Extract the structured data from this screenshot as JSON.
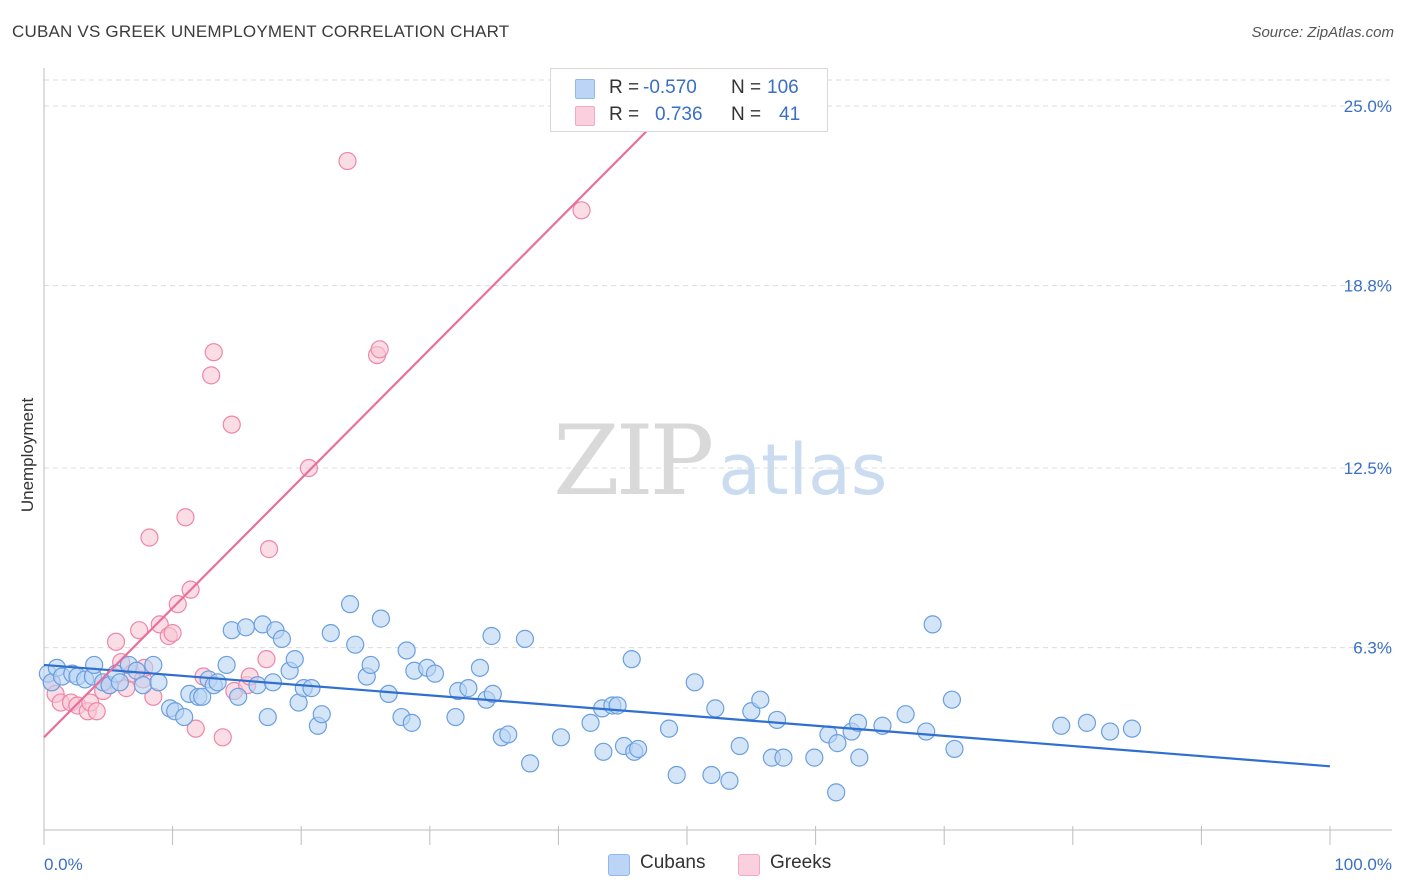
{
  "header": {
    "title": "CUBAN VS GREEK UNEMPLOYMENT CORRELATION CHART",
    "source": "Source: ZipAtlas.com"
  },
  "watermark": {
    "zip": "ZIP",
    "atlas": "atlas"
  },
  "legend": {
    "rows": [
      {
        "r_label": "R =",
        "r_value": "-0.570",
        "n_label": "N =",
        "n_value": "106",
        "color": "#8fb8ee"
      },
      {
        "r_label": "R =",
        "r_value": "0.736",
        "n_label": "N =",
        "n_value": "41",
        "color": "#f4a9c0"
      }
    ]
  },
  "bottom_legend": [
    {
      "label": "Cubans",
      "color": "#8fb8ee"
    },
    {
      "label": "Greeks",
      "color": "#f4a9c0"
    }
  ],
  "chart_data": {
    "type": "scatter",
    "title": "CUBAN VS GREEK UNEMPLOYMENT CORRELATION CHART",
    "ylabel": "Unemployment",
    "xlabel": "",
    "xlim": [
      0,
      100
    ],
    "ylim": [
      0,
      25.9
    ],
    "x_tick_labels": [
      {
        "value": 0,
        "label": "0.0%"
      },
      {
        "value": 100,
        "label": "100.0%"
      }
    ],
    "y_ticks": [
      {
        "value": 6.3,
        "label": "6.3%"
      },
      {
        "value": 12.5,
        "label": "12.5%"
      },
      {
        "value": 18.8,
        "label": "18.8%"
      },
      {
        "value": 25.0,
        "label": "25.0%"
      }
    ],
    "grid": "horizontal dashed",
    "legend_position": "top-center",
    "series": [
      {
        "name": "Cubans",
        "color": "#6a9fe0",
        "fill": "#b9d3f4",
        "trend": {
          "x": [
            0,
            100
          ],
          "y": [
            5.7,
            2.2
          ]
        },
        "points": [
          [
            0.3,
            5.4
          ],
          [
            0.6,
            5.1
          ],
          [
            1.0,
            5.6
          ],
          [
            1.4,
            5.3
          ],
          [
            2.2,
            5.4
          ],
          [
            2.6,
            5.3
          ],
          [
            3.2,
            5.2
          ],
          [
            3.8,
            5.3
          ],
          [
            3.9,
            5.7
          ],
          [
            4.6,
            5.1
          ],
          [
            5.1,
            5.0
          ],
          [
            5.6,
            5.4
          ],
          [
            5.9,
            5.1
          ],
          [
            6.6,
            5.7
          ],
          [
            7.2,
            5.5
          ],
          [
            7.7,
            5.0
          ],
          [
            8.5,
            5.7
          ],
          [
            8.9,
            5.1
          ],
          [
            9.8,
            4.2
          ],
          [
            10.2,
            4.1
          ],
          [
            10.9,
            3.9
          ],
          [
            11.3,
            4.7
          ],
          [
            12.0,
            4.6
          ],
          [
            12.3,
            4.6
          ],
          [
            12.8,
            5.2
          ],
          [
            13.2,
            5.0
          ],
          [
            13.5,
            5.1
          ],
          [
            14.2,
            5.7
          ],
          [
            14.6,
            6.9
          ],
          [
            15.1,
            4.6
          ],
          [
            15.7,
            7.0
          ],
          [
            16.6,
            5.0
          ],
          [
            17.0,
            7.1
          ],
          [
            17.4,
            3.9
          ],
          [
            17.8,
            5.1
          ],
          [
            18.0,
            6.9
          ],
          [
            18.5,
            6.6
          ],
          [
            19.1,
            5.5
          ],
          [
            19.5,
            5.9
          ],
          [
            19.8,
            4.4
          ],
          [
            20.2,
            4.9
          ],
          [
            20.8,
            4.9
          ],
          [
            21.3,
            3.6
          ],
          [
            21.6,
            4.0
          ],
          [
            22.3,
            6.8
          ],
          [
            23.8,
            7.8
          ],
          [
            24.2,
            6.4
          ],
          [
            25.1,
            5.3
          ],
          [
            25.4,
            5.7
          ],
          [
            26.2,
            7.3
          ],
          [
            26.8,
            4.7
          ],
          [
            27.8,
            3.9
          ],
          [
            28.2,
            6.2
          ],
          [
            28.6,
            3.7
          ],
          [
            28.8,
            5.5
          ],
          [
            29.8,
            5.6
          ],
          [
            30.4,
            5.4
          ],
          [
            32.0,
            3.9
          ],
          [
            32.2,
            4.8
          ],
          [
            33.0,
            4.9
          ],
          [
            33.9,
            5.6
          ],
          [
            34.4,
            4.5
          ],
          [
            34.8,
            6.7
          ],
          [
            34.9,
            4.7
          ],
          [
            35.6,
            3.2
          ],
          [
            36.1,
            3.3
          ],
          [
            37.4,
            6.6
          ],
          [
            37.8,
            2.3
          ],
          [
            40.2,
            3.2
          ],
          [
            42.5,
            3.7
          ],
          [
            43.4,
            4.2
          ],
          [
            43.5,
            2.7
          ],
          [
            44.2,
            4.3
          ],
          [
            44.6,
            4.3
          ],
          [
            45.1,
            2.9
          ],
          [
            45.7,
            5.9
          ],
          [
            45.9,
            2.7
          ],
          [
            46.2,
            2.8
          ],
          [
            48.6,
            3.5
          ],
          [
            49.2,
            1.9
          ],
          [
            50.6,
            5.1
          ],
          [
            51.9,
            1.9
          ],
          [
            52.2,
            4.2
          ],
          [
            53.3,
            1.7
          ],
          [
            54.1,
            2.9
          ],
          [
            55.0,
            4.1
          ],
          [
            55.7,
            4.5
          ],
          [
            56.6,
            2.5
          ],
          [
            57.0,
            3.8
          ],
          [
            57.5,
            2.5
          ],
          [
            59.9,
            2.5
          ],
          [
            61.0,
            3.3
          ],
          [
            61.6,
            1.3
          ],
          [
            61.7,
            3.0
          ],
          [
            62.8,
            3.4
          ],
          [
            63.3,
            3.7
          ],
          [
            63.4,
            2.5
          ],
          [
            65.2,
            3.6
          ],
          [
            67.0,
            4.0
          ],
          [
            68.6,
            3.4
          ],
          [
            69.1,
            7.1
          ],
          [
            70.6,
            4.5
          ],
          [
            70.8,
            2.8
          ],
          [
            79.1,
            3.6
          ],
          [
            81.1,
            3.7
          ],
          [
            82.9,
            3.4
          ],
          [
            84.6,
            3.5
          ]
        ]
      },
      {
        "name": "Greeks",
        "color": "#ee86a8",
        "fill": "#f8c6d6",
        "trend": {
          "x": [
            0,
            48.8
          ],
          "y": [
            3.2,
            25.0
          ]
        },
        "points": [
          [
            0.6,
            5.1
          ],
          [
            0.9,
            4.7
          ],
          [
            1.3,
            4.4
          ],
          [
            2.1,
            4.4
          ],
          [
            2.6,
            4.3
          ],
          [
            3.4,
            4.1
          ],
          [
            3.6,
            4.4
          ],
          [
            4.1,
            4.1
          ],
          [
            4.6,
            4.8
          ],
          [
            5.1,
            5.0
          ],
          [
            5.6,
            6.5
          ],
          [
            6.0,
            5.8
          ],
          [
            6.4,
            4.9
          ],
          [
            6.8,
            5.4
          ],
          [
            7.4,
            6.9
          ],
          [
            7.7,
            5.2
          ],
          [
            7.8,
            5.6
          ],
          [
            8.2,
            10.1
          ],
          [
            8.5,
            4.6
          ],
          [
            9.0,
            7.1
          ],
          [
            9.7,
            6.7
          ],
          [
            10.0,
            6.8
          ],
          [
            10.4,
            7.8
          ],
          [
            11.0,
            10.8
          ],
          [
            11.4,
            8.3
          ],
          [
            11.8,
            3.5
          ],
          [
            12.4,
            5.3
          ],
          [
            13.0,
            15.7
          ],
          [
            13.2,
            16.5
          ],
          [
            13.9,
            3.2
          ],
          [
            14.6,
            14.0
          ],
          [
            14.8,
            4.8
          ],
          [
            15.8,
            5.0
          ],
          [
            16.0,
            5.3
          ],
          [
            17.3,
            5.9
          ],
          [
            17.5,
            9.7
          ],
          [
            20.6,
            12.5
          ],
          [
            23.6,
            23.1
          ],
          [
            25.9,
            16.4
          ],
          [
            26.1,
            16.6
          ],
          [
            41.8,
            21.4
          ]
        ]
      }
    ]
  }
}
